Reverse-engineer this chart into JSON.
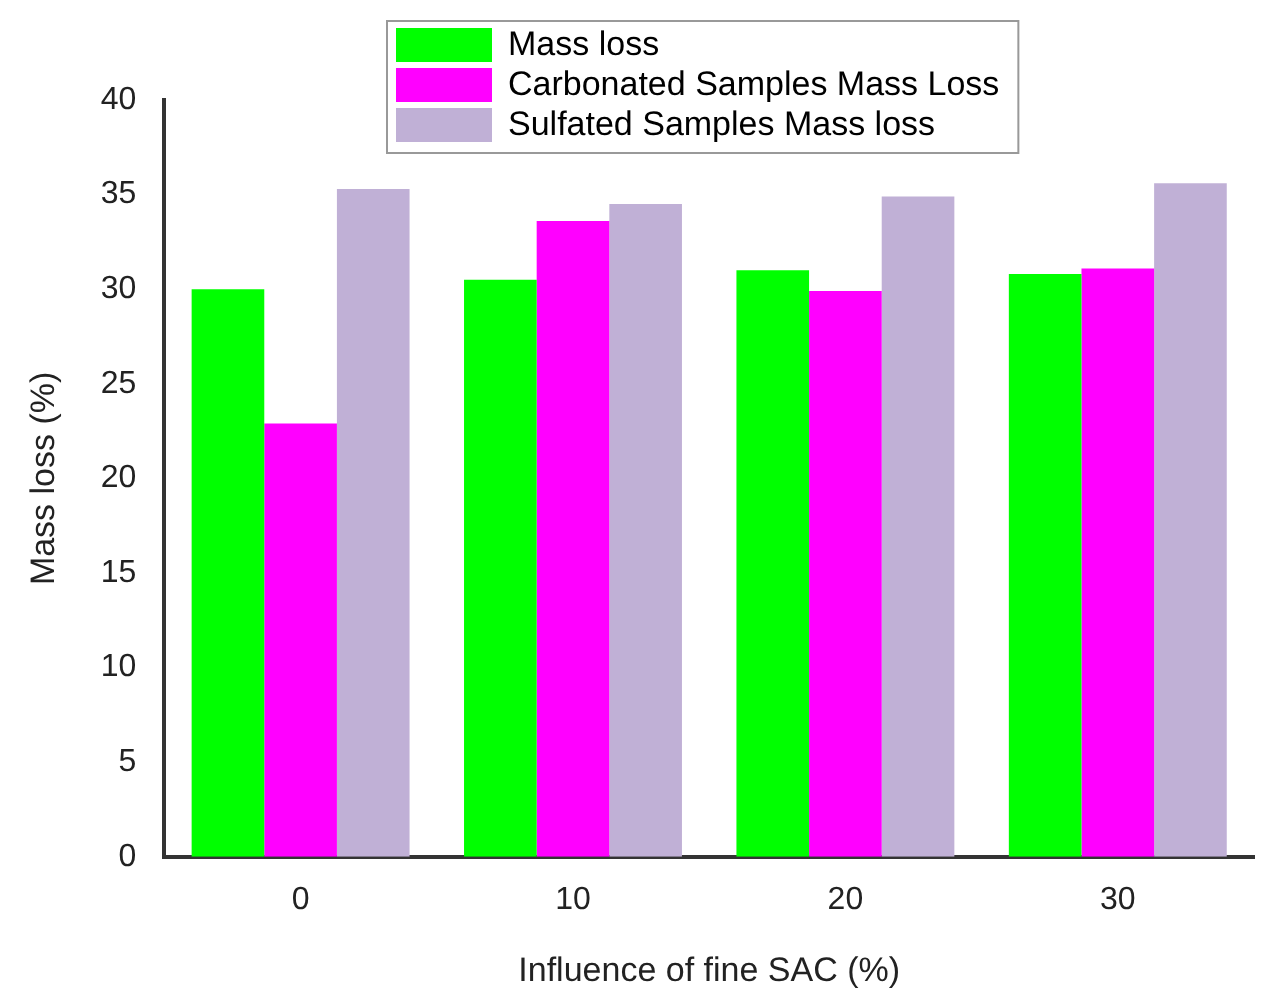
{
  "chart_data": {
    "type": "bar",
    "xlabel": "Influence of fine SAC (%)",
    "ylabel": "Mass loss (%)",
    "categories": [
      "0",
      "10",
      "20",
      "30"
    ],
    "series": [
      {
        "name": "Mass loss",
        "color": "#00ff00",
        "values": [
          30.0,
          30.5,
          31.0,
          30.8
        ]
      },
      {
        "name": "Carbonated Samples Mass Loss",
        "color": "#ff00ff",
        "values": [
          22.9,
          33.6,
          29.9,
          31.1
        ]
      },
      {
        "name": "Sulfated Samples Mass loss",
        "color": "#c0b0d6",
        "values": [
          35.3,
          34.5,
          34.9,
          35.6
        ]
      }
    ],
    "ylim": [
      0,
      40
    ],
    "yticks": [
      0,
      5,
      10,
      15,
      20,
      25,
      30,
      35,
      40
    ],
    "grid": false,
    "legend": "top"
  }
}
